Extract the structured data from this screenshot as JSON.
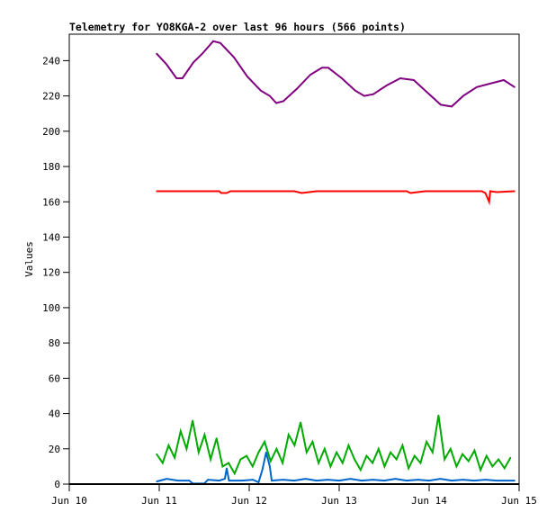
{
  "chart_data": {
    "type": "line",
    "title": "Telemetry for YO8KGA-2 over last 96 hours (566 points)",
    "xlabel": "",
    "ylabel": "Values",
    "x_units": "hours since Jun 10 00:00",
    "xlim": [
      0,
      120
    ],
    "ylim": [
      0,
      255
    ],
    "grid": false,
    "legend": "none",
    "x_ticks": [
      {
        "value": 0,
        "label": "Jun 10"
      },
      {
        "value": 24,
        "label": "Jun 11"
      },
      {
        "value": 48,
        "label": "Jun 12"
      },
      {
        "value": 72,
        "label": "Jun 13"
      },
      {
        "value": 96,
        "label": "Jun 14"
      },
      {
        "value": 120,
        "label": "Jun 15"
      }
    ],
    "y_ticks": [
      0,
      20,
      40,
      60,
      80,
      100,
      120,
      140,
      160,
      180,
      200,
      220,
      240
    ],
    "series": [
      {
        "name": "purple",
        "color": "#800080",
        "width": 2,
        "x": [
          23.3,
          25.9,
          28.6,
          30.2,
          33.1,
          35.5,
          38.4,
          40.3,
          43.9,
          47.5,
          51.1,
          53.5,
          55.2,
          57.1,
          60.7,
          64.3,
          67.4,
          69.1,
          72.7,
          76.3,
          78.7,
          81.1,
          84.7,
          88.3,
          91.9,
          95.5,
          99.1,
          102,
          105.1,
          108.7,
          112.3,
          115.9,
          118.8
        ],
        "y": [
          244,
          238,
          230,
          230,
          239,
          244,
          251,
          250,
          242,
          231,
          223,
          220,
          216,
          217,
          224,
          232,
          236,
          236,
          230,
          223,
          220,
          221,
          226,
          230,
          229,
          222,
          215,
          214,
          220,
          225,
          227,
          229,
          225
        ]
      },
      {
        "name": "red",
        "color": "#ff0000",
        "width": 2,
        "x": [
          23.3,
          40,
          40.5,
          42,
          43,
          60,
          62,
          66,
          80,
          90,
          91,
          95,
          110,
          111,
          112,
          112.3,
          114,
          118.8
        ],
        "y": [
          166,
          166,
          165,
          165,
          166,
          166,
          165,
          166,
          166,
          166,
          165,
          166,
          166,
          165,
          160,
          166,
          165.5,
          166
        ]
      },
      {
        "name": "green",
        "color": "#00aa00",
        "width": 2,
        "x": [
          23.3,
          24.9,
          26.5,
          28.1,
          29.7,
          31.3,
          32.9,
          34.5,
          36.1,
          37.7,
          39.3,
          40.9,
          42.5,
          44.1,
          45.7,
          47.3,
          48.9,
          50.5,
          52.1,
          53.7,
          55.3,
          56.9,
          58.5,
          60.1,
          61.7,
          63.3,
          64.9,
          66.5,
          68.1,
          69.7,
          71.3,
          72.9,
          74.5,
          76.1,
          77.7,
          79.3,
          80.9,
          82.5,
          84.1,
          85.7,
          87.3,
          88.9,
          90.5,
          92.1,
          93.7,
          95.3,
          96.9,
          98.5,
          100.1,
          101.7,
          103.3,
          104.9,
          106.5,
          108.1,
          109.7,
          111.3,
          112.9,
          114.5,
          116.1,
          117.7
        ],
        "y": [
          17,
          12,
          22,
          15,
          30,
          20,
          36,
          18,
          28,
          14,
          26,
          10,
          12,
          6,
          14,
          16,
          10,
          18,
          24,
          13,
          20,
          12,
          28,
          22,
          35,
          18,
          24,
          12,
          20,
          10,
          18,
          12,
          22,
          14,
          8,
          16,
          12,
          20,
          10,
          18,
          14,
          22,
          9,
          16,
          12,
          24,
          18,
          39,
          14,
          20,
          10,
          17,
          13,
          19,
          8,
          16,
          10,
          14,
          9,
          15
        ]
      },
      {
        "name": "blue",
        "color": "#0066cc",
        "width": 2,
        "x": [
          23.3,
          26,
          29,
          32,
          33,
          36,
          37,
          40,
          41.5,
          42,
          42.6,
          46,
          49,
          50.5,
          51.5,
          52.5,
          53.5,
          54,
          57,
          60,
          63,
          66,
          69,
          72,
          75,
          78,
          81,
          84,
          87,
          90,
          93,
          96,
          99,
          102,
          105,
          108,
          111,
          114,
          118.8
        ],
        "y": [
          1.5,
          3,
          2,
          2,
          0.3,
          0.3,
          2.5,
          2,
          3,
          9,
          2,
          2,
          2.5,
          1,
          8,
          18,
          10,
          2,
          2.5,
          2,
          3,
          2,
          2.5,
          2,
          3,
          2,
          2.5,
          2,
          3,
          2,
          2.5,
          2,
          3,
          2,
          2.5,
          2,
          2.5,
          2,
          2
        ]
      }
    ]
  }
}
